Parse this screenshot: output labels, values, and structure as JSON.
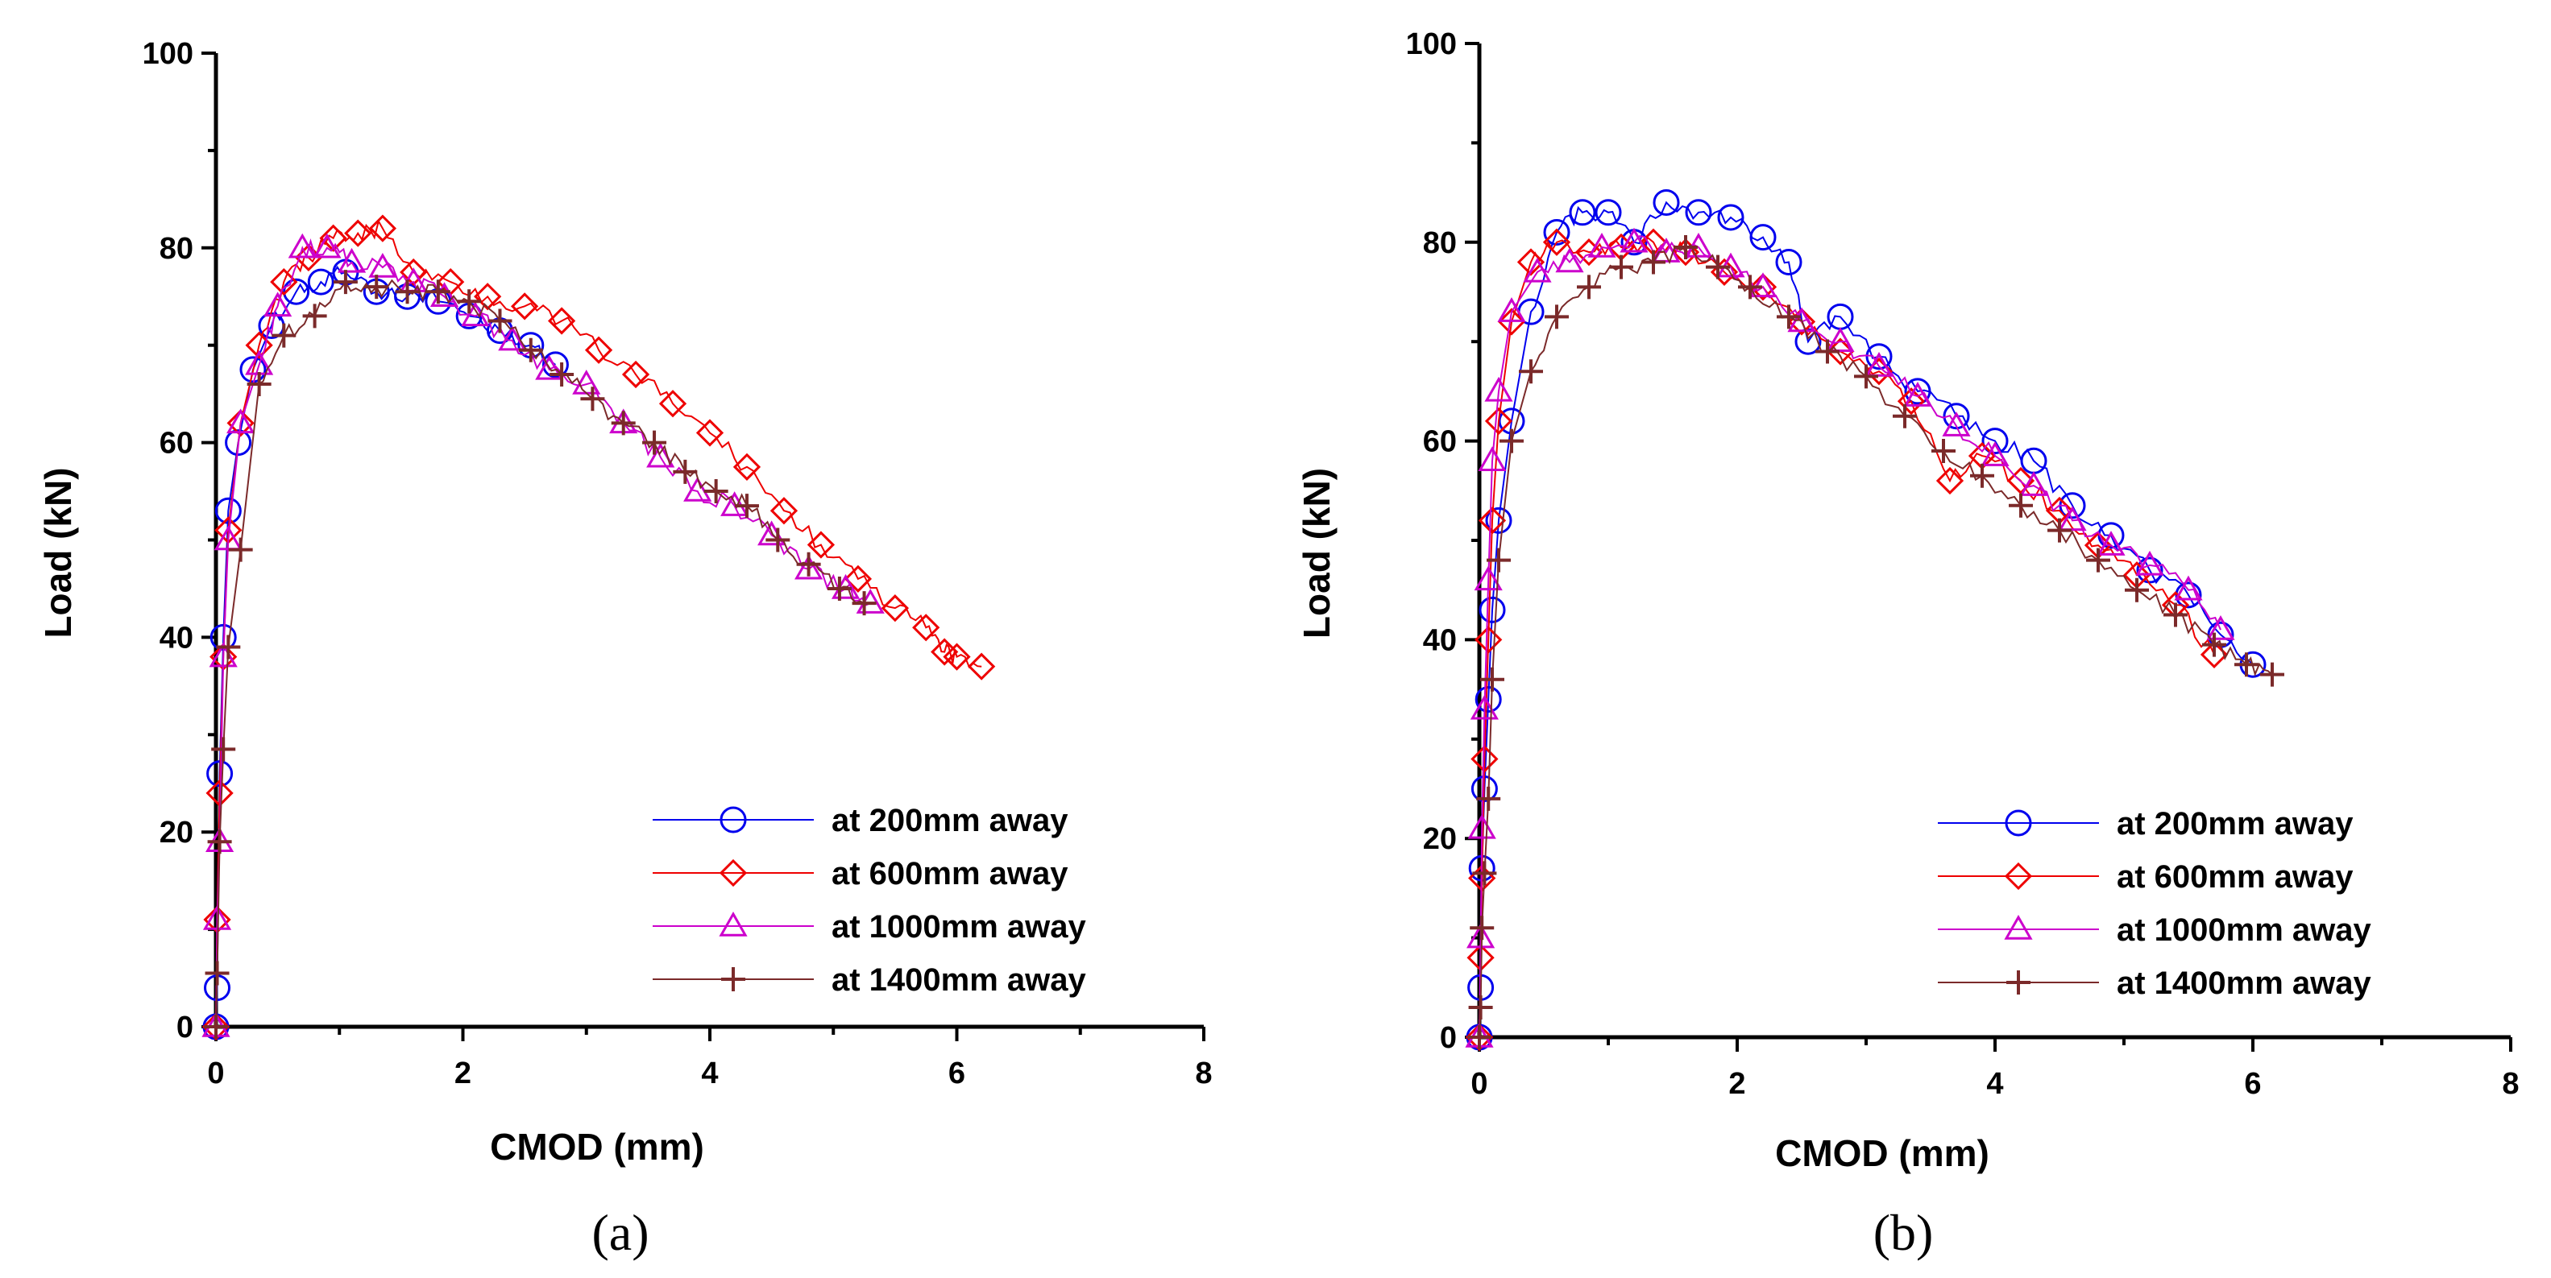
{
  "chart_data": [
    {
      "type": "line",
      "panel_label": "(a)",
      "xlabel": "CMOD (mm)",
      "ylabel": "Load (kN)",
      "xlim": [
        0,
        8
      ],
      "ylim": [
        0,
        100
      ],
      "x_ticks": [
        "0",
        "2",
        "4",
        "6",
        "8"
      ],
      "y_ticks": [
        "0",
        "20",
        "40",
        "60",
        "80",
        "100"
      ],
      "legend_position": "bottom-right",
      "series": [
        {
          "name": "at 200mm away",
          "color": "#0000ee",
          "marker": "circle",
          "x": [
            0,
            0.01,
            0.03,
            0.06,
            0.1,
            0.18,
            0.3,
            0.45,
            0.65,
            0.85,
            1.05,
            1.3,
            1.55,
            1.8,
            2.05,
            2.3,
            2.55,
            2.75
          ],
          "y": [
            0,
            4,
            26,
            40,
            53,
            60,
            67.5,
            72,
            75.5,
            76.5,
            77.5,
            75.5,
            75,
            74.5,
            73,
            71.5,
            70,
            68
          ]
        },
        {
          "name": "at 600mm away",
          "color": "#ee0000",
          "marker": "diamond",
          "x": [
            0,
            0.01,
            0.03,
            0.06,
            0.1,
            0.2,
            0.35,
            0.55,
            0.75,
            0.95,
            1.15,
            1.35,
            1.6,
            1.9,
            2.2,
            2.5,
            2.8,
            3.1,
            3.4,
            3.7,
            4.0,
            4.3,
            4.6,
            4.9,
            5.2,
            5.5,
            5.75,
            5.9,
            6.0,
            6.2
          ],
          "y": [
            0,
            11,
            24,
            38,
            51,
            62,
            70,
            76.5,
            79,
            81,
            81.5,
            82,
            77.5,
            76.5,
            75,
            74,
            72.5,
            69.5,
            67,
            64,
            61,
            57.5,
            53,
            49.5,
            46,
            43,
            41,
            38.5,
            38,
            37
          ]
        },
        {
          "name": "at 1000mm away",
          "color": "#cc00cc",
          "marker": "triangle",
          "x": [
            0,
            0.01,
            0.03,
            0.06,
            0.1,
            0.2,
            0.35,
            0.5,
            0.7,
            0.9,
            1.1,
            1.35,
            1.6,
            1.85,
            2.1,
            2.4,
            2.7,
            3.0,
            3.3,
            3.6,
            3.9,
            4.2,
            4.5,
            4.8,
            5.1,
            5.3
          ],
          "y": [
            0,
            11,
            19,
            38,
            50,
            62,
            68,
            74,
            80,
            80,
            78.5,
            78,
            76.5,
            75,
            73,
            70.5,
            67.5,
            66,
            62,
            58.5,
            55,
            53.5,
            50.5,
            47,
            45,
            43.5
          ]
        },
        {
          "name": "at 1400mm away",
          "color": "#7b2a2a",
          "marker": "plus",
          "x": [
            0,
            0.01,
            0.03,
            0.06,
            0.1,
            0.2,
            0.35,
            0.55,
            0.8,
            1.05,
            1.3,
            1.55,
            1.8,
            2.05,
            2.3,
            2.55,
            2.8,
            3.05,
            3.3,
            3.55,
            3.8,
            4.05,
            4.3,
            4.55,
            4.8,
            5.05,
            5.25
          ],
          "y": [
            0,
            5.5,
            19,
            28.5,
            39,
            49,
            66,
            71,
            73,
            76.5,
            76,
            75.5,
            75.5,
            74.5,
            72.5,
            69.5,
            67,
            64.5,
            62,
            60,
            57,
            55,
            53.5,
            50,
            47.5,
            45,
            43.5
          ]
        }
      ]
    },
    {
      "type": "line",
      "panel_label": "(b)",
      "xlabel": "CMOD (mm)",
      "ylabel": "Load (kN)",
      "xlim": [
        0,
        8
      ],
      "ylim": [
        0,
        100
      ],
      "x_ticks": [
        "0",
        "2",
        "4",
        "6",
        "8"
      ],
      "y_ticks": [
        "0",
        "20",
        "40",
        "60",
        "80",
        "100"
      ],
      "legend_position": "bottom-right",
      "series": [
        {
          "name": "at 200mm away",
          "color": "#0000ee",
          "marker": "circle",
          "x": [
            0,
            0.01,
            0.02,
            0.04,
            0.07,
            0.1,
            0.15,
            0.25,
            0.4,
            0.6,
            0.8,
            1.0,
            1.2,
            1.45,
            1.7,
            1.95,
            2.2,
            2.4,
            2.55,
            2.8,
            3.1,
            3.4,
            3.7,
            4.0,
            4.3,
            4.6,
            4.9,
            5.2,
            5.5,
            5.75,
            6.0
          ],
          "y": [
            0,
            5,
            17,
            25,
            34,
            43,
            52,
            62,
            73,
            81,
            83,
            83,
            80,
            84,
            83,
            82.5,
            80.5,
            78,
            70,
            72.5,
            68.5,
            65,
            62.5,
            60,
            58,
            53.5,
            50.5,
            47,
            44.5,
            40.5,
            37.5
          ]
        },
        {
          "name": "at 600mm away",
          "color": "#ee0000",
          "marker": "diamond",
          "x": [
            0,
            0.01,
            0.02,
            0.04,
            0.07,
            0.1,
            0.15,
            0.25,
            0.4,
            0.6,
            0.85,
            1.1,
            1.35,
            1.6,
            1.9,
            2.2,
            2.5,
            2.8,
            3.1,
            3.35,
            3.65,
            3.9,
            4.2,
            4.5,
            4.8,
            5.1,
            5.4,
            5.7
          ],
          "y": [
            0,
            8,
            16,
            28,
            40,
            52,
            62,
            72,
            78,
            80,
            79,
            79.5,
            80,
            79,
            77,
            75.5,
            72,
            69,
            67,
            64,
            56,
            58.5,
            56,
            53,
            49.5,
            46.5,
            43.5,
            38.5
          ]
        },
        {
          "name": "at 1000mm away",
          "color": "#cc00cc",
          "marker": "triangle",
          "x": [
            0,
            0.01,
            0.02,
            0.04,
            0.07,
            0.1,
            0.15,
            0.25,
            0.45,
            0.7,
            0.95,
            1.2,
            1.45,
            1.7,
            1.95,
            2.2,
            2.5,
            2.8,
            3.1,
            3.4,
            3.7,
            4.0,
            4.3,
            4.6,
            4.9,
            5.2,
            5.5,
            5.75
          ],
          "y": [
            0,
            10,
            21,
            33,
            46,
            58,
            65,
            73,
            77,
            78,
            79.5,
            80,
            79,
            79.5,
            77.5,
            75.5,
            72,
            70,
            67.5,
            64.5,
            61.5,
            58.5,
            55.5,
            52,
            49.5,
            47.5,
            45,
            41
          ]
        },
        {
          "name": "at 1400mm away",
          "color": "#7b2a2a",
          "marker": "plus",
          "x": [
            0,
            0.01,
            0.02,
            0.04,
            0.07,
            0.1,
            0.15,
            0.25,
            0.4,
            0.6,
            0.85,
            1.1,
            1.35,
            1.6,
            1.85,
            2.1,
            2.4,
            2.7,
            3.0,
            3.3,
            3.6,
            3.9,
            4.2,
            4.5,
            4.8,
            5.1,
            5.4,
            5.7,
            5.95,
            6.15
          ],
          "y": [
            0,
            3,
            11,
            16.5,
            24,
            36,
            48,
            60,
            67,
            72.5,
            75.5,
            77.5,
            78,
            79.5,
            77.5,
            75.5,
            72.5,
            69,
            66.5,
            62.5,
            59,
            56.5,
            53.5,
            51,
            48,
            45,
            42.5,
            39.5,
            37.5,
            36.5
          ]
        }
      ]
    }
  ]
}
